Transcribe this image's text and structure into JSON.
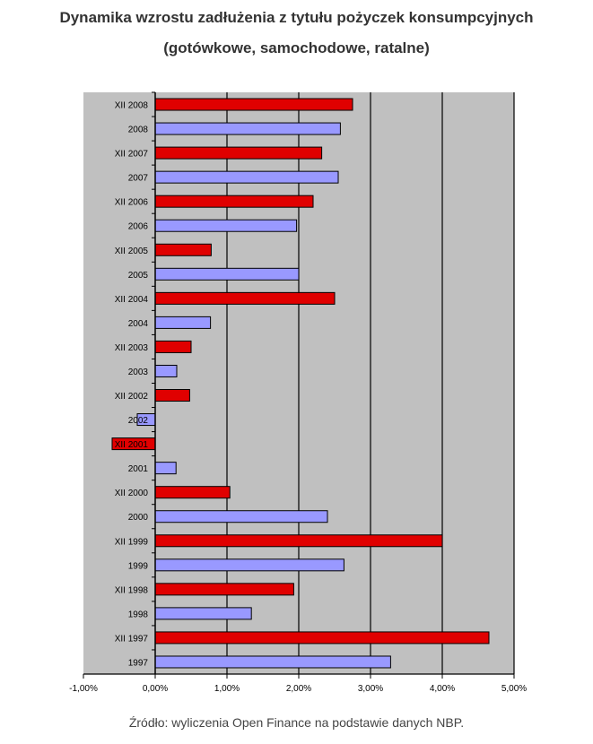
{
  "title_line1": "Dynamika wzrostu zadłużenia z tytułu pożyczek konsumpcyjnych",
  "title_line2": "(gotówkowe, samochodowe, ratalne)",
  "source": "Źródło: wyliczenia Open Finance na podstawie danych NBP.",
  "chart_data": {
    "type": "bar",
    "orientation": "horizontal",
    "categories": [
      "XII 2008",
      "2008",
      "XII 2007",
      "2007",
      "XII 2006",
      "2006",
      "XII 2005",
      "2005",
      "XII 2004",
      "2004",
      "XII 2003",
      "2003",
      "XII 2002",
      "2002",
      "XII 2001",
      "2001",
      "XII 2000",
      "2000",
      "XII 1999",
      "1999",
      "XII 1998",
      "1998",
      "XII 1997",
      "1997"
    ],
    "values": [
      2.75,
      2.58,
      2.32,
      2.55,
      2.2,
      1.97,
      0.78,
      2.0,
      2.5,
      0.77,
      0.5,
      0.3,
      0.48,
      -0.25,
      -0.6,
      0.29,
      1.04,
      2.4,
      4.0,
      2.63,
      1.93,
      1.34,
      4.65,
      3.28
    ],
    "colors": [
      "#e00000",
      "#9999ff",
      "#e00000",
      "#9999ff",
      "#e00000",
      "#9999ff",
      "#e00000",
      "#9999ff",
      "#e00000",
      "#9999ff",
      "#e00000",
      "#9999ff",
      "#e00000",
      "#9999ff",
      "#e00000",
      "#9999ff",
      "#e00000",
      "#9999ff",
      "#e00000",
      "#9999ff",
      "#e00000",
      "#9999ff",
      "#e00000",
      "#9999ff"
    ],
    "xlim": [
      -1,
      5
    ],
    "xticks": [
      -1,
      0,
      1,
      2,
      3,
      4,
      5
    ],
    "xtick_labels": [
      "-1,00%",
      "0,00%",
      "1,00%",
      "2,00%",
      "3,00%",
      "4,00%",
      "5,00%"
    ],
    "grid": true,
    "plot_background": "#c0c0c0"
  }
}
